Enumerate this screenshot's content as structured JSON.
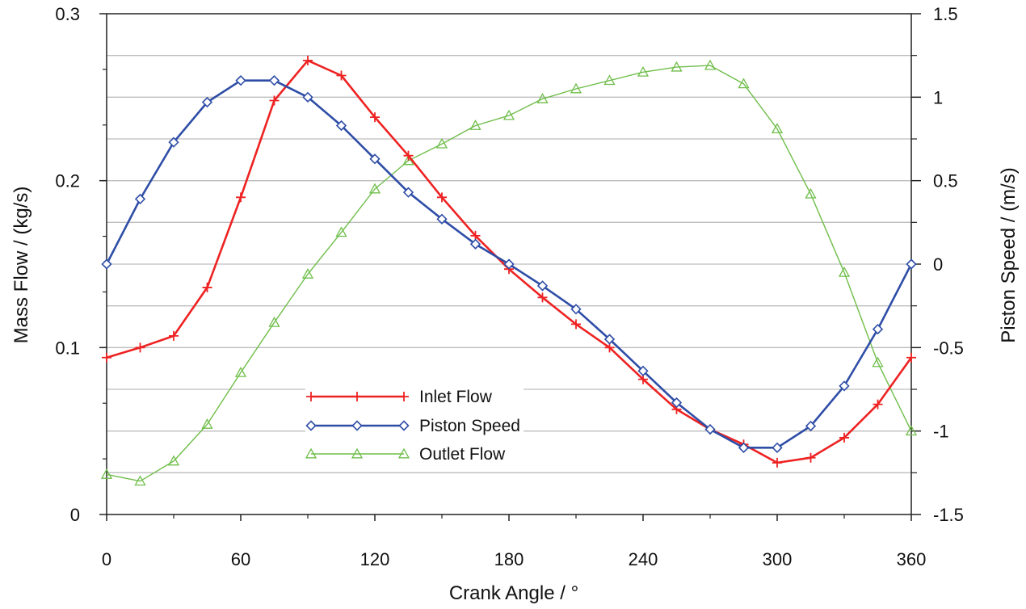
{
  "chart_data": {
    "type": "line",
    "title": "",
    "xlabel": "Crank   Angle  /  °",
    "ylabel_left": "Mass  Flow  /  (kg/s)",
    "ylabel_right": "Piston Speed  /  (m/s)",
    "xlim": [
      0,
      360
    ],
    "ylim_left": [
      0,
      0.3
    ],
    "ylim_right": [
      -1.5,
      1.5
    ],
    "grid": true,
    "legend_position": "bottom-left",
    "x_ticks": [
      "0",
      "60",
      "120",
      "180",
      "240",
      "300",
      "360"
    ],
    "y_left_ticks": [
      "0",
      "0.1",
      "0.2",
      "0.3"
    ],
    "y_right_ticks": [
      "-1.5",
      "-1",
      "-0.5",
      "0",
      "0.5",
      "1",
      "1.5"
    ],
    "x": [
      0,
      15,
      30,
      45,
      60,
      75,
      90,
      105,
      120,
      135,
      150,
      165,
      180,
      195,
      210,
      225,
      240,
      255,
      270,
      285,
      300,
      315,
      330,
      345,
      360
    ],
    "series": [
      {
        "name": "Inlet Flow",
        "axis": "left",
        "color": "#ee2222",
        "marker": "plus",
        "values": [
          0.094,
          0.1,
          0.107,
          0.136,
          0.19,
          0.248,
          0.272,
          0.263,
          0.238,
          0.215,
          0.19,
          0.167,
          0.147,
          0.13,
          0.114,
          0.1,
          0.081,
          0.063,
          0.051,
          0.042,
          0.031,
          0.034,
          0.046,
          0.066,
          0.094
        ]
      },
      {
        "name": "Piston Speed",
        "axis": "right",
        "color": "#2e4da6",
        "marker": "diamond",
        "values": [
          0.0,
          0.39,
          0.73,
          0.97,
          1.1,
          1.1,
          1.0,
          0.83,
          0.63,
          0.43,
          0.27,
          0.12,
          0.0,
          -0.13,
          -0.27,
          -0.45,
          -0.64,
          -0.83,
          -0.99,
          -1.1,
          -1.1,
          -0.97,
          -0.73,
          -0.39,
          0.0
        ]
      },
      {
        "name": "Outlet Flow",
        "axis": "left",
        "color": "#6fbe4a",
        "marker": "triangle",
        "values": [
          0.024,
          0.02,
          0.032,
          0.054,
          0.085,
          0.115,
          0.144,
          0.169,
          0.195,
          0.212,
          0.222,
          0.233,
          0.239,
          0.249,
          0.255,
          0.26,
          0.265,
          0.268,
          0.269,
          0.258,
          0.231,
          0.192,
          0.145,
          0.091,
          0.05
        ]
      }
    ]
  }
}
